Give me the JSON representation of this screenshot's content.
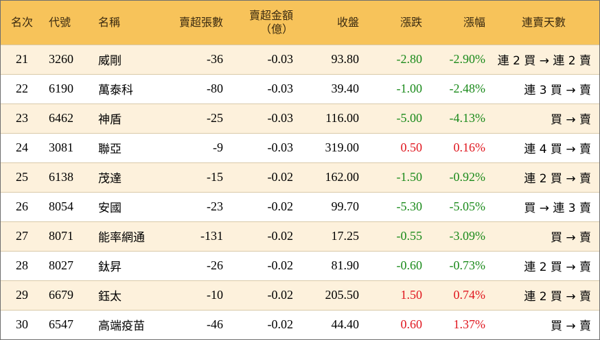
{
  "header": {
    "rank": "名次",
    "code": "代號",
    "name": "名稱",
    "net_sell_lots": "賣超張數",
    "net_sell_amount_line1": "賣超金額",
    "net_sell_amount_line2": "（億）",
    "close": "收盤",
    "change": "漲跌",
    "change_pct": "漲幅",
    "streak": "連賣天數"
  },
  "rows": [
    {
      "rank": "21",
      "code": "3260",
      "name": "威剛",
      "lots": "-36",
      "amount": "-0.03",
      "close": "93.80",
      "change": "-2.80",
      "pct": "-2.90%",
      "dir": "neg",
      "streak": "連 2 買 → 連 2 賣"
    },
    {
      "rank": "22",
      "code": "6190",
      "name": "萬泰科",
      "lots": "-80",
      "amount": "-0.03",
      "close": "39.40",
      "change": "-1.00",
      "pct": "-2.48%",
      "dir": "neg",
      "streak": "連 3 買 → 賣"
    },
    {
      "rank": "23",
      "code": "6462",
      "name": "神盾",
      "lots": "-25",
      "amount": "-0.03",
      "close": "116.00",
      "change": "-5.00",
      "pct": "-4.13%",
      "dir": "neg",
      "streak": "買 → 賣"
    },
    {
      "rank": "24",
      "code": "3081",
      "name": "聯亞",
      "lots": "-9",
      "amount": "-0.03",
      "close": "319.00",
      "change": "0.50",
      "pct": "0.16%",
      "dir": "pos",
      "streak": "連 4 買 → 賣"
    },
    {
      "rank": "25",
      "code": "6138",
      "name": "茂達",
      "lots": "-15",
      "amount": "-0.02",
      "close": "162.00",
      "change": "-1.50",
      "pct": "-0.92%",
      "dir": "neg",
      "streak": "連 2 買 → 賣"
    },
    {
      "rank": "26",
      "code": "8054",
      "name": "安國",
      "lots": "-23",
      "amount": "-0.02",
      "close": "99.70",
      "change": "-5.30",
      "pct": "-5.05%",
      "dir": "neg",
      "streak": "買 → 連 3 賣"
    },
    {
      "rank": "27",
      "code": "8071",
      "name": "能率網通",
      "lots": "-131",
      "amount": "-0.02",
      "close": "17.25",
      "change": "-0.55",
      "pct": "-3.09%",
      "dir": "neg",
      "streak": "買 → 賣"
    },
    {
      "rank": "28",
      "code": "8027",
      "name": "鈦昇",
      "lots": "-26",
      "amount": "-0.02",
      "close": "81.90",
      "change": "-0.60",
      "pct": "-0.73%",
      "dir": "neg",
      "streak": "連 2 買 → 賣"
    },
    {
      "rank": "29",
      "code": "6679",
      "name": "鈺太",
      "lots": "-10",
      "amount": "-0.02",
      "close": "205.50",
      "change": "1.50",
      "pct": "0.74%",
      "dir": "pos",
      "streak": "連 2 買 → 賣"
    },
    {
      "rank": "30",
      "code": "6547",
      "name": "高端疫苗",
      "lots": "-46",
      "amount": "-0.02",
      "close": "44.40",
      "change": "0.60",
      "pct": "1.37%",
      "dir": "pos",
      "streak": "買 → 賣"
    }
  ],
  "colors": {
    "header_bg": "#f7c35a",
    "odd_row_bg": "#fdf1dc",
    "even_row_bg": "#ffffff",
    "negative": "#1a8a1a",
    "positive": "#e0161e"
  }
}
